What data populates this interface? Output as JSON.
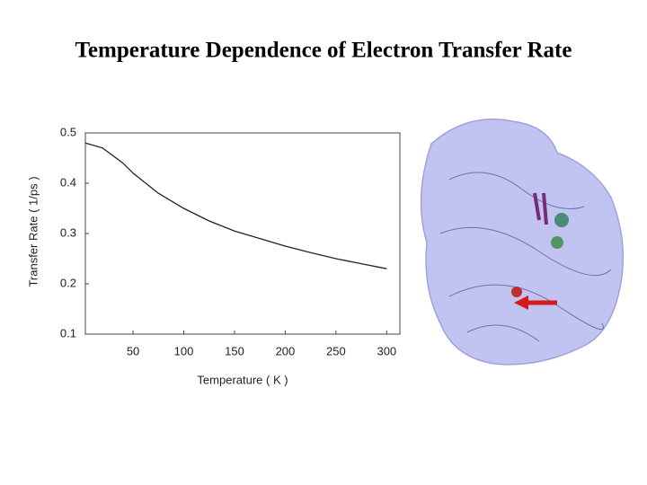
{
  "chart_data": {
    "type": "line",
    "title": "Temperature Dependence of Electron Transfer Rate",
    "x_label": "Temperature ( K )",
    "y_label": "Transfer Rate ( 1/ps )",
    "x": [
      3,
      20,
      40,
      50,
      75,
      100,
      125,
      150,
      175,
      200,
      225,
      250,
      275,
      300
    ],
    "values": [
      0.48,
      0.47,
      0.44,
      0.42,
      0.38,
      0.35,
      0.325,
      0.305,
      0.29,
      0.275,
      0.262,
      0.25,
      0.24,
      0.23
    ],
    "color": "#222222",
    "xlim": [
      3,
      313
    ],
    "xticks": [
      50,
      100,
      150,
      200,
      250,
      300
    ],
    "ylim": [
      0.1,
      0.5
    ],
    "yticks": [
      0.1,
      0.2,
      0.3,
      0.4,
      0.5
    ]
  }
}
